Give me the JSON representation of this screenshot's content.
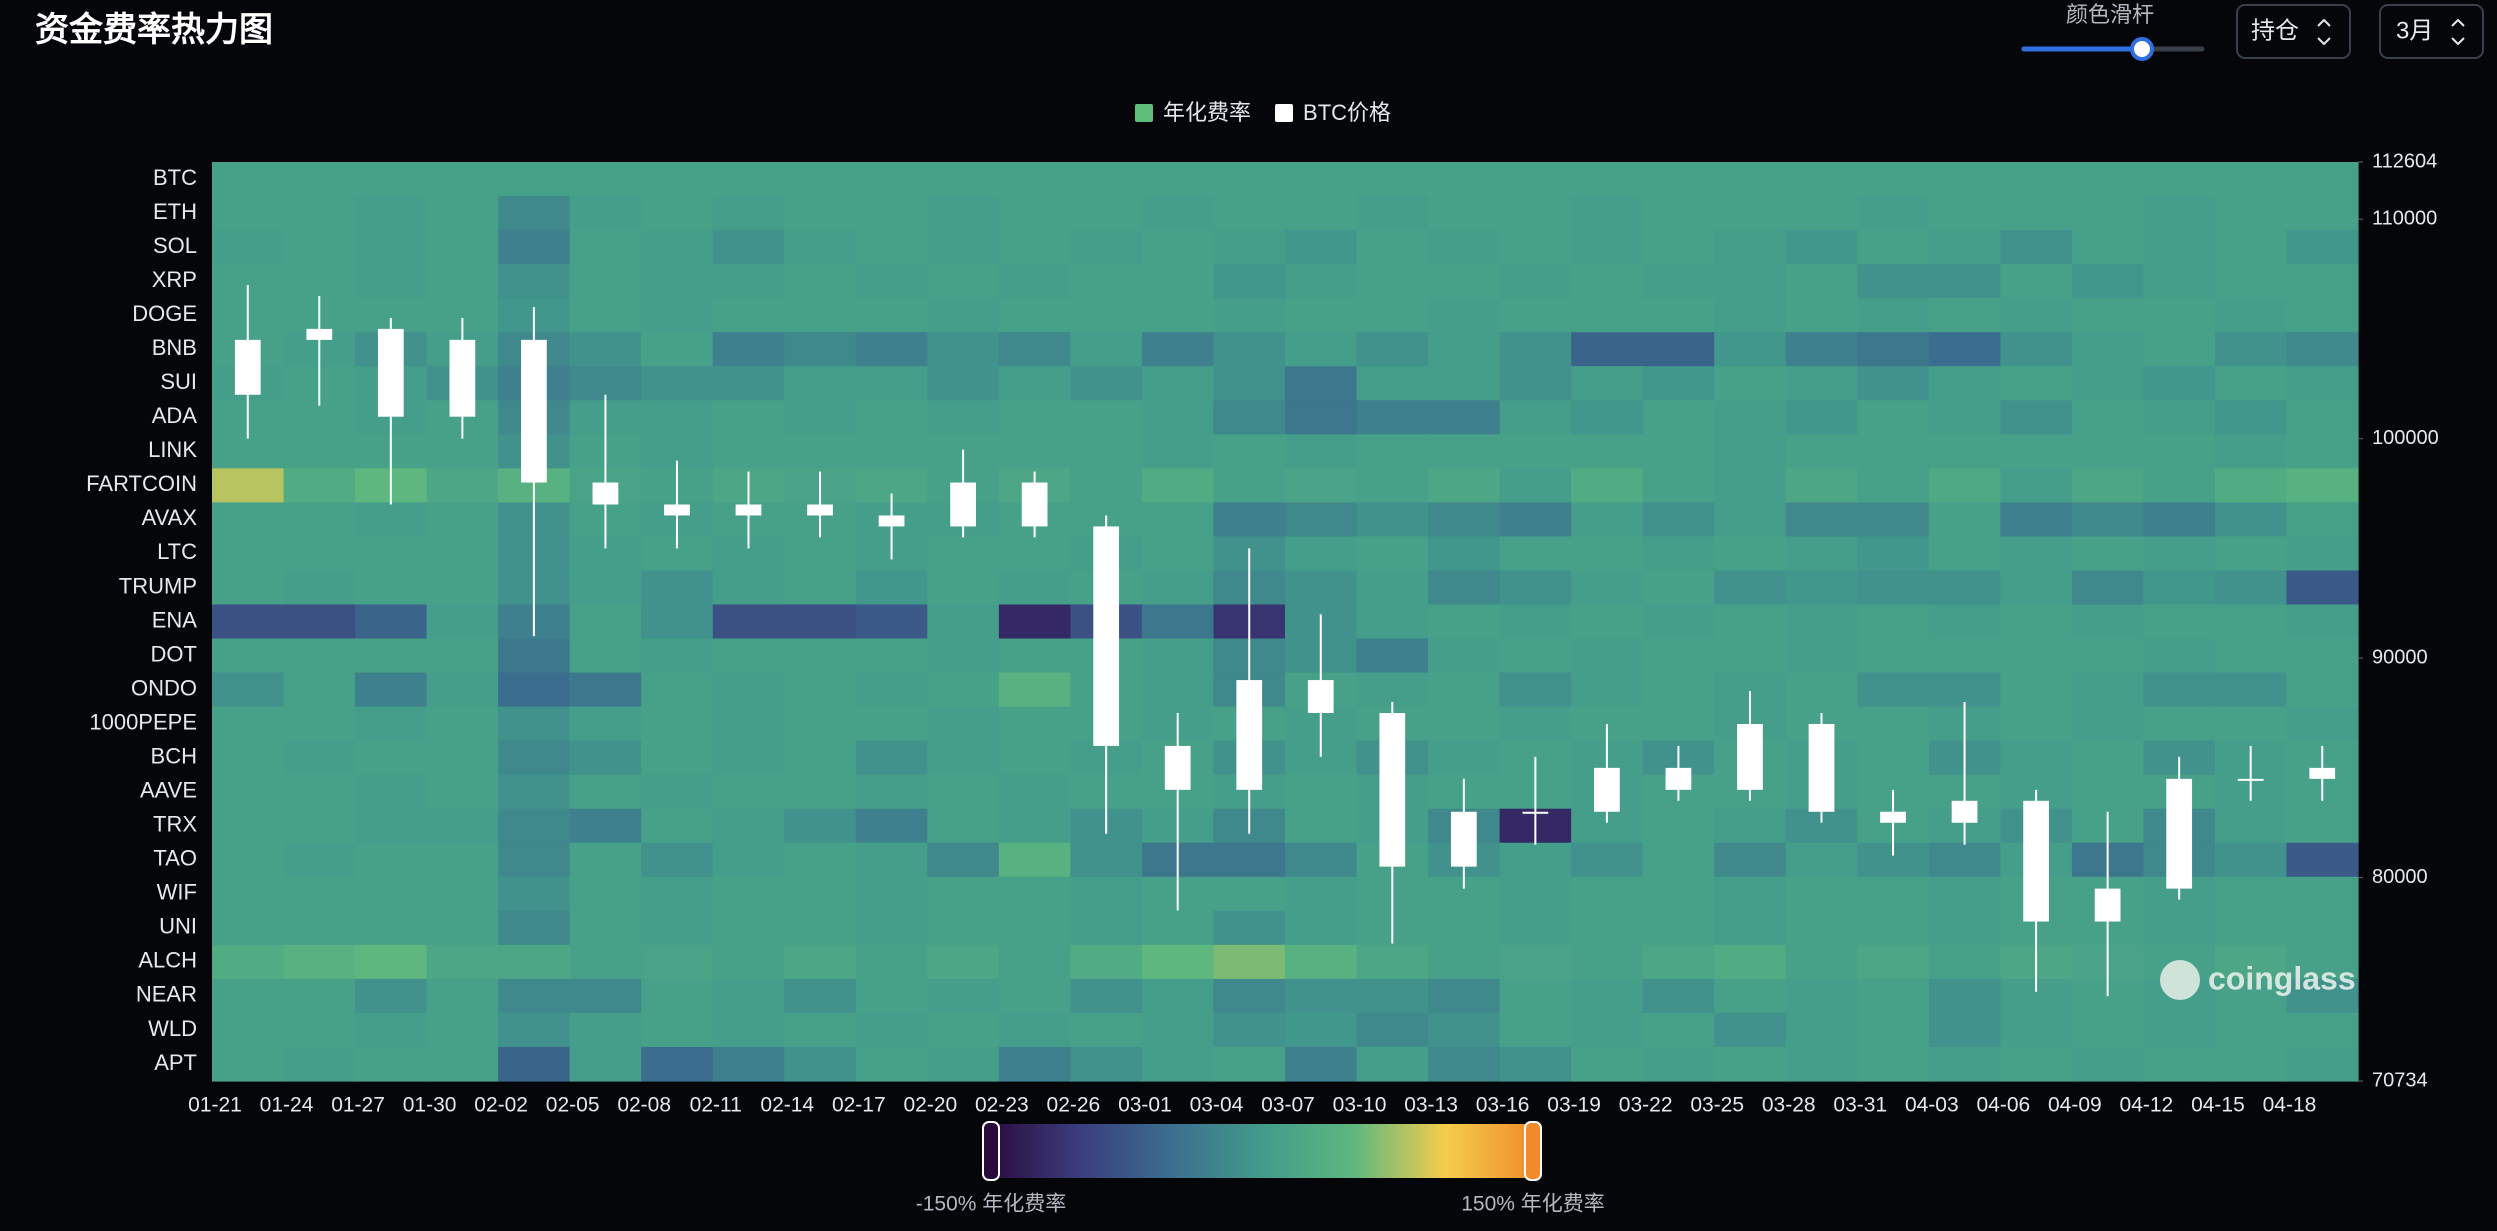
{
  "header": {
    "title": "资金费率热力图",
    "slider_label": "颜色滑杆",
    "dropdown_metric": "持仓",
    "dropdown_period": "3月"
  },
  "watermark": "coinglass",
  "chart_data": {
    "type": "heatmap",
    "categories": [
      "01-21",
      "01-24",
      "01-27",
      "01-30",
      "02-02",
      "02-05",
      "02-08",
      "02-11",
      "02-14",
      "02-17",
      "02-20",
      "02-23",
      "02-26",
      "03-01",
      "03-04",
      "03-07",
      "03-10",
      "03-13",
      "03-16",
      "03-19",
      "03-22",
      "03-25",
      "03-28",
      "03-31",
      "04-03",
      "04-06",
      "04-09",
      "04-12",
      "04-15",
      "04-18"
    ],
    "rows": [
      "BTC",
      "ETH",
      "SOL",
      "XRP",
      "DOGE",
      "BNB",
      "SUI",
      "ADA",
      "LINK",
      "FARTCOIN",
      "AVAX",
      "LTC",
      "TRUMP",
      "ENA",
      "DOT",
      "ONDO",
      "1000PEPE",
      "BCH",
      "AAVE",
      "TRX",
      "TAO",
      "WIF",
      "UNI",
      "ALCH",
      "NEAR",
      "WLD",
      "APT"
    ],
    "visual_map": {
      "range": [
        -150,
        150
      ],
      "labels": [
        "-150% 年化费率",
        "150% 年化费率"
      ],
      "colors": [
        "#2a0a3c",
        "#3b3d7e",
        "#3b6e8e",
        "#429b8b",
        "#5db77e",
        "#f5cd4c",
        "#f08a2a"
      ]
    },
    "series": [
      {
        "name": "年化费率",
        "color": "#5fbf7a",
        "values": [
          [
            10,
            10,
            10,
            10,
            10,
            10,
            10,
            10,
            10,
            10,
            10,
            10,
            10,
            10,
            10,
            10,
            10,
            10,
            10,
            10,
            10,
            10,
            10,
            10,
            10,
            10,
            10,
            10,
            10,
            10
          ],
          [
            10,
            10,
            5,
            10,
            -20,
            5,
            10,
            5,
            10,
            10,
            5,
            10,
            10,
            5,
            10,
            10,
            5,
            10,
            10,
            5,
            10,
            10,
            10,
            5,
            10,
            10,
            10,
            5,
            10,
            10
          ],
          [
            5,
            10,
            5,
            10,
            -30,
            10,
            5,
            -10,
            5,
            10,
            5,
            10,
            5,
            10,
            5,
            -5,
            10,
            5,
            10,
            5,
            10,
            5,
            -5,
            10,
            5,
            -10,
            10,
            5,
            10,
            -5
          ],
          [
            10,
            10,
            5,
            10,
            -10,
            10,
            5,
            5,
            10,
            5,
            10,
            5,
            10,
            10,
            -5,
            5,
            10,
            10,
            5,
            10,
            5,
            5,
            10,
            -10,
            -10,
            10,
            -5,
            5,
            10,
            10
          ],
          [
            10,
            10,
            10,
            10,
            -5,
            10,
            5,
            10,
            10,
            10,
            5,
            10,
            10,
            10,
            5,
            10,
            10,
            5,
            10,
            10,
            10,
            5,
            10,
            5,
            10,
            5,
            10,
            10,
            5,
            10
          ],
          [
            10,
            5,
            -10,
            5,
            -20,
            -10,
            10,
            -30,
            -20,
            -30,
            -10,
            -20,
            5,
            -30,
            -10,
            5,
            -10,
            5,
            -10,
            -60,
            -60,
            -5,
            -30,
            -40,
            -50,
            -10,
            5,
            10,
            -10,
            -20
          ],
          [
            5,
            10,
            5,
            -10,
            -30,
            -20,
            -10,
            -10,
            5,
            5,
            -10,
            5,
            -10,
            5,
            -10,
            -40,
            5,
            5,
            -10,
            5,
            -5,
            10,
            5,
            -10,
            5,
            10,
            5,
            -5,
            10,
            5
          ],
          [
            10,
            10,
            5,
            10,
            -20,
            5,
            5,
            10,
            5,
            10,
            5,
            10,
            10,
            5,
            -20,
            -40,
            -30,
            -30,
            5,
            -5,
            10,
            5,
            -5,
            10,
            5,
            -10,
            10,
            5,
            -5,
            10
          ],
          [
            10,
            10,
            10,
            10,
            -10,
            10,
            5,
            10,
            10,
            10,
            10,
            10,
            10,
            5,
            10,
            5,
            10,
            10,
            10,
            10,
            10,
            5,
            10,
            10,
            10,
            10,
            10,
            10,
            5,
            10
          ],
          [
            80,
            30,
            50,
            20,
            40,
            15,
            10,
            20,
            15,
            20,
            10,
            20,
            10,
            30,
            10,
            15,
            10,
            20,
            5,
            30,
            10,
            5,
            20,
            10,
            25,
            5,
            20,
            10,
            30,
            40
          ],
          [
            10,
            10,
            5,
            10,
            -10,
            10,
            5,
            10,
            10,
            5,
            5,
            10,
            10,
            10,
            -30,
            -20,
            -10,
            -20,
            -30,
            5,
            -10,
            5,
            -20,
            -20,
            10,
            -30,
            -20,
            -30,
            -10,
            10
          ],
          [
            10,
            10,
            10,
            10,
            -10,
            5,
            10,
            5,
            10,
            5,
            10,
            10,
            5,
            10,
            -10,
            5,
            10,
            -5,
            10,
            10,
            5,
            10,
            5,
            -5,
            10,
            5,
            10,
            5,
            10,
            5
          ],
          [
            10,
            5,
            10,
            10,
            -10,
            5,
            -10,
            5,
            10,
            -5,
            10,
            5,
            10,
            5,
            -20,
            -10,
            5,
            -20,
            -10,
            5,
            10,
            -10,
            -5,
            -10,
            -10,
            5,
            -20,
            -5,
            -10,
            -70
          ],
          [
            -80,
            -80,
            -60,
            5,
            -30,
            10,
            -10,
            -80,
            -80,
            -70,
            5,
            -120,
            -80,
            -40,
            -110,
            -10,
            5,
            10,
            5,
            10,
            5,
            10,
            5,
            10,
            5,
            10,
            5,
            10,
            10,
            5
          ],
          [
            10,
            10,
            10,
            10,
            -40,
            10,
            5,
            10,
            10,
            10,
            5,
            10,
            10,
            5,
            -20,
            -10,
            -30,
            5,
            10,
            5,
            10,
            10,
            5,
            10,
            10,
            10,
            10,
            5,
            10,
            10
          ],
          [
            -10,
            10,
            -30,
            5,
            -50,
            -40,
            10,
            5,
            10,
            5,
            10,
            40,
            10,
            5,
            -20,
            10,
            5,
            10,
            -10,
            5,
            10,
            5,
            10,
            -10,
            -10,
            10,
            5,
            -10,
            -10,
            10
          ],
          [
            10,
            10,
            5,
            10,
            -10,
            5,
            10,
            5,
            10,
            10,
            5,
            10,
            10,
            5,
            10,
            5,
            10,
            10,
            5,
            10,
            10,
            5,
            10,
            10,
            5,
            10,
            5,
            10,
            10,
            5
          ],
          [
            10,
            5,
            10,
            10,
            -20,
            -10,
            10,
            5,
            10,
            -10,
            5,
            10,
            5,
            10,
            -10,
            5,
            -10,
            5,
            10,
            5,
            -10,
            10,
            5,
            10,
            -10,
            5,
            10,
            -10,
            5,
            10
          ],
          [
            10,
            10,
            5,
            10,
            -10,
            10,
            5,
            10,
            10,
            5,
            10,
            5,
            10,
            10,
            5,
            10,
            5,
            10,
            10,
            5,
            10,
            10,
            5,
            10,
            10,
            5,
            10,
            10,
            5,
            10
          ],
          [
            10,
            10,
            5,
            5,
            -20,
            -30,
            10,
            5,
            -10,
            -30,
            10,
            5,
            -10,
            5,
            -20,
            10,
            5,
            -20,
            -120,
            5,
            10,
            5,
            -10,
            10,
            5,
            -10,
            10,
            -20,
            5,
            10
          ],
          [
            10,
            5,
            10,
            10,
            -20,
            10,
            -10,
            5,
            10,
            5,
            -20,
            40,
            -10,
            -40,
            -40,
            -20,
            10,
            -10,
            5,
            -10,
            10,
            -20,
            5,
            -10,
            -20,
            5,
            -40,
            -20,
            -10,
            -70
          ],
          [
            10,
            10,
            10,
            10,
            -10,
            10,
            5,
            10,
            10,
            5,
            10,
            10,
            5,
            10,
            10,
            5,
            10,
            10,
            5,
            10,
            10,
            5,
            10,
            10,
            5,
            10,
            10,
            5,
            10,
            10
          ],
          [
            10,
            10,
            10,
            10,
            -20,
            10,
            5,
            10,
            10,
            5,
            10,
            10,
            5,
            10,
            -10,
            5,
            10,
            10,
            5,
            10,
            10,
            5,
            10,
            10,
            5,
            10,
            10,
            5,
            10,
            10
          ],
          [
            30,
            40,
            50,
            20,
            20,
            10,
            15,
            10,
            20,
            10,
            20,
            10,
            30,
            50,
            60,
            40,
            20,
            10,
            15,
            10,
            20,
            30,
            10,
            20,
            10,
            20,
            15,
            10,
            20,
            10
          ],
          [
            10,
            10,
            -10,
            10,
            -20,
            -20,
            10,
            5,
            -10,
            10,
            5,
            10,
            -10,
            5,
            -20,
            -10,
            -10,
            -20,
            10,
            5,
            -10,
            10,
            5,
            10,
            -10,
            5,
            10,
            5,
            10,
            -10
          ],
          [
            10,
            10,
            5,
            10,
            -10,
            5,
            10,
            5,
            10,
            5,
            10,
            5,
            10,
            5,
            -10,
            -5,
            -20,
            -10,
            10,
            5,
            10,
            -10,
            5,
            10,
            -10,
            5,
            10,
            5,
            10,
            10
          ],
          [
            10,
            5,
            10,
            10,
            -60,
            5,
            -50,
            -30,
            -10,
            10,
            5,
            -30,
            -10,
            5,
            10,
            -30,
            5,
            -20,
            -10,
            10,
            5,
            10,
            5,
            10,
            5,
            10,
            5,
            10,
            10,
            5
          ]
        ]
      },
      {
        "name": "BTC价格",
        "type": "candlestick",
        "color": "#ffffff",
        "axis": "y2",
        "open": [
          102000,
          104500,
          105000,
          101000,
          104500,
          98000,
          97000,
          96500,
          97000,
          96500,
          96000,
          98000,
          96000,
          86000,
          84000,
          89000,
          87500,
          80500,
          83000,
          83000,
          85000,
          84000,
          87000,
          83000,
          82500,
          83500,
          78000,
          79500,
          84500,
          84500
        ],
        "high": [
          107000,
          106500,
          105500,
          105500,
          106000,
          102000,
          99000,
          98500,
          98500,
          97500,
          99500,
          98500,
          96500,
          87500,
          95000,
          92000,
          88000,
          84500,
          85500,
          87000,
          86000,
          88500,
          87500,
          84000,
          88000,
          84000,
          83000,
          85500,
          86000,
          86000
        ],
        "low": [
          100000,
          101500,
          97000,
          100000,
          91000,
          95000,
          95000,
          95000,
          95500,
          94500,
          95500,
          95500,
          82000,
          78500,
          82000,
          85500,
          77000,
          79500,
          81500,
          82500,
          83500,
          83500,
          82500,
          81000,
          81500,
          74800,
          74600,
          79000,
          83500,
          83500
        ],
        "close": [
          104500,
          105000,
          101000,
          104500,
          98000,
          97000,
          96500,
          97000,
          96500,
          96000,
          98000,
          96000,
          86000,
          84000,
          89000,
          87500,
          80500,
          83000,
          83000,
          85000,
          84000,
          87000,
          83000,
          82500,
          83500,
          78000,
          79500,
          84500,
          84500,
          85000
        ]
      }
    ],
    "y2lim": [
      70734,
      112604
    ],
    "y2ticks": [
      70734,
      80000,
      90000,
      100000,
      110000,
      112604
    ]
  }
}
